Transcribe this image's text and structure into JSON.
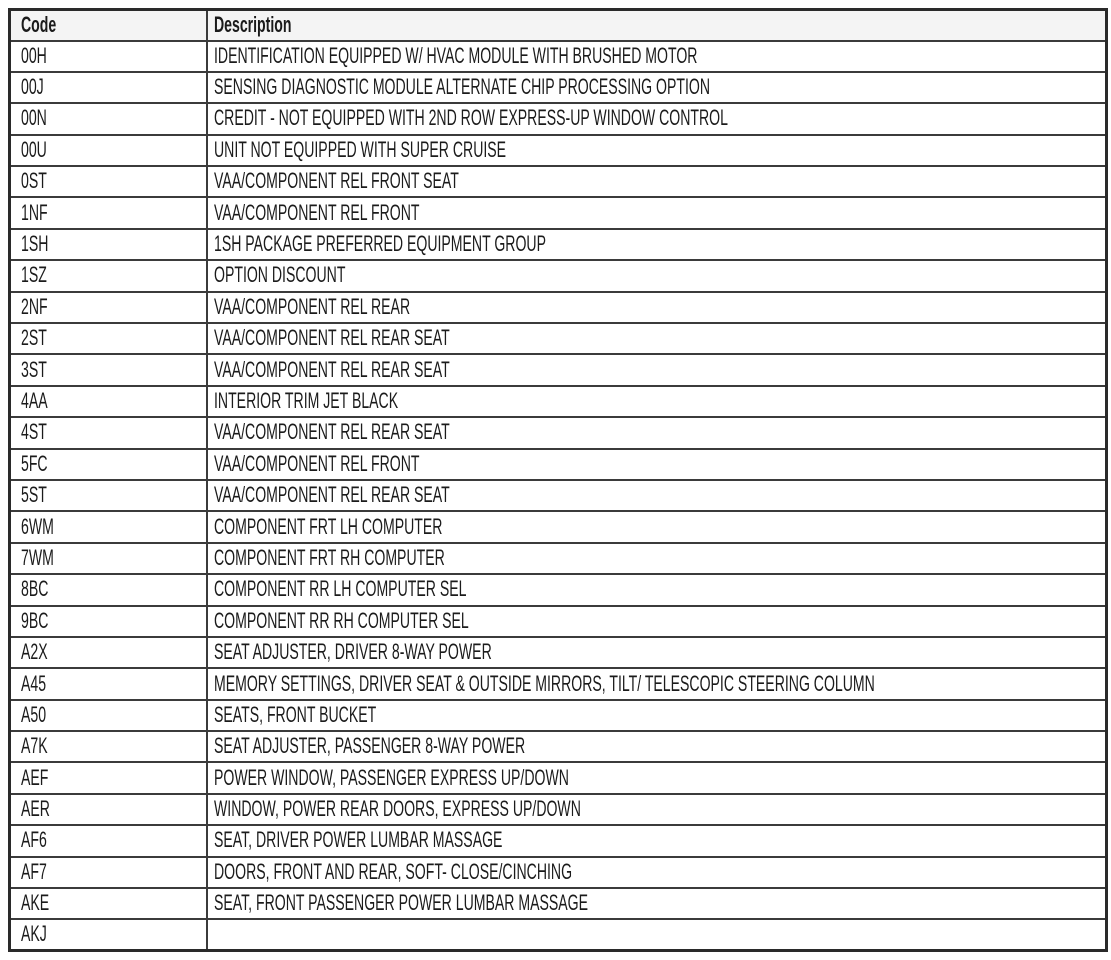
{
  "page": {
    "background": "#ffffff"
  },
  "table": {
    "columns": [
      "Code",
      "Description"
    ],
    "rows": [
      {
        "code": "00H",
        "description": "IDENTIFICATION EQUIPPED W/ HVAC MODULE WITH BRUSHED MOTOR"
      },
      {
        "code": "00J",
        "description": "SENSING DIAGNOSTIC MODULE ALTERNATE CHIP PROCESSING OPTION"
      },
      {
        "code": "00N",
        "description": "CREDIT - NOT EQUIPPED WITH 2ND ROW EXPRESS-UP WINDOW CONTROL"
      },
      {
        "code": "00U",
        "description": "UNIT NOT EQUIPPED WITH SUPER CRUISE"
      },
      {
        "code": "0ST",
        "description": "VAA/COMPONENT REL FRONT SEAT"
      },
      {
        "code": "1NF",
        "description": "VAA/COMPONENT REL FRONT"
      },
      {
        "code": "1SH",
        "description": "1SH PACKAGE PREFERRED EQUIPMENT GROUP"
      },
      {
        "code": "1SZ",
        "description": "OPTION DISCOUNT"
      },
      {
        "code": "2NF",
        "description": "VAA/COMPONENT REL REAR"
      },
      {
        "code": "2ST",
        "description": "VAA/COMPONENT REL REAR SEAT"
      },
      {
        "code": "3ST",
        "description": "VAA/COMPONENT REL REAR SEAT"
      },
      {
        "code": "4AA",
        "description": "INTERIOR TRIM JET BLACK"
      },
      {
        "code": "4ST",
        "description": "VAA/COMPONENT REL REAR SEAT"
      },
      {
        "code": "5FC",
        "description": "VAA/COMPONENT REL FRONT"
      },
      {
        "code": "5ST",
        "description": "VAA/COMPONENT REL REAR SEAT"
      },
      {
        "code": "6WM",
        "description": "COMPONENT FRT LH COMPUTER"
      },
      {
        "code": "7WM",
        "description": "COMPONENT FRT RH COMPUTER"
      },
      {
        "code": "8BC",
        "description": "COMPONENT RR LH COMPUTER SEL"
      },
      {
        "code": "9BC",
        "description": "COMPONENT RR RH COMPUTER SEL"
      },
      {
        "code": "A2X",
        "description": "SEAT ADJUSTER, DRIVER 8-WAY POWER"
      },
      {
        "code": "A45",
        "description": "MEMORY SETTINGS, DRIVER SEAT & OUTSIDE MIRRORS, TILT/ TELESCOPIC STEERING COLUMN"
      },
      {
        "code": "A50",
        "description": "SEATS, FRONT BUCKET"
      },
      {
        "code": "A7K",
        "description": "SEAT ADJUSTER, PASSENGER 8-WAY POWER"
      },
      {
        "code": "AEF",
        "description": "POWER WINDOW, PASSENGER EXPRESS UP/DOWN"
      },
      {
        "code": "AER",
        "description": "WINDOW, POWER REAR DOORS, EXPRESS UP/DOWN"
      },
      {
        "code": "AF6",
        "description": "SEAT, DRIVER POWER LUMBAR MASSAGE"
      },
      {
        "code": "AF7",
        "description": "DOORS, FRONT AND REAR, SOFT- CLOSE/CINCHING"
      },
      {
        "code": "AKE",
        "description": "SEAT, FRONT PASSENGER POWER LUMBAR MASSAGE"
      },
      {
        "code": "AKJ",
        "description": ""
      }
    ],
    "colors": {
      "page_background": "#ffffff",
      "header_background": "#f4f4f4",
      "row_background": "#ffffff",
      "border_outer": "#2a2a2a",
      "border_inner": "#3b3b3b",
      "text": "#1b1b1b"
    }
  }
}
